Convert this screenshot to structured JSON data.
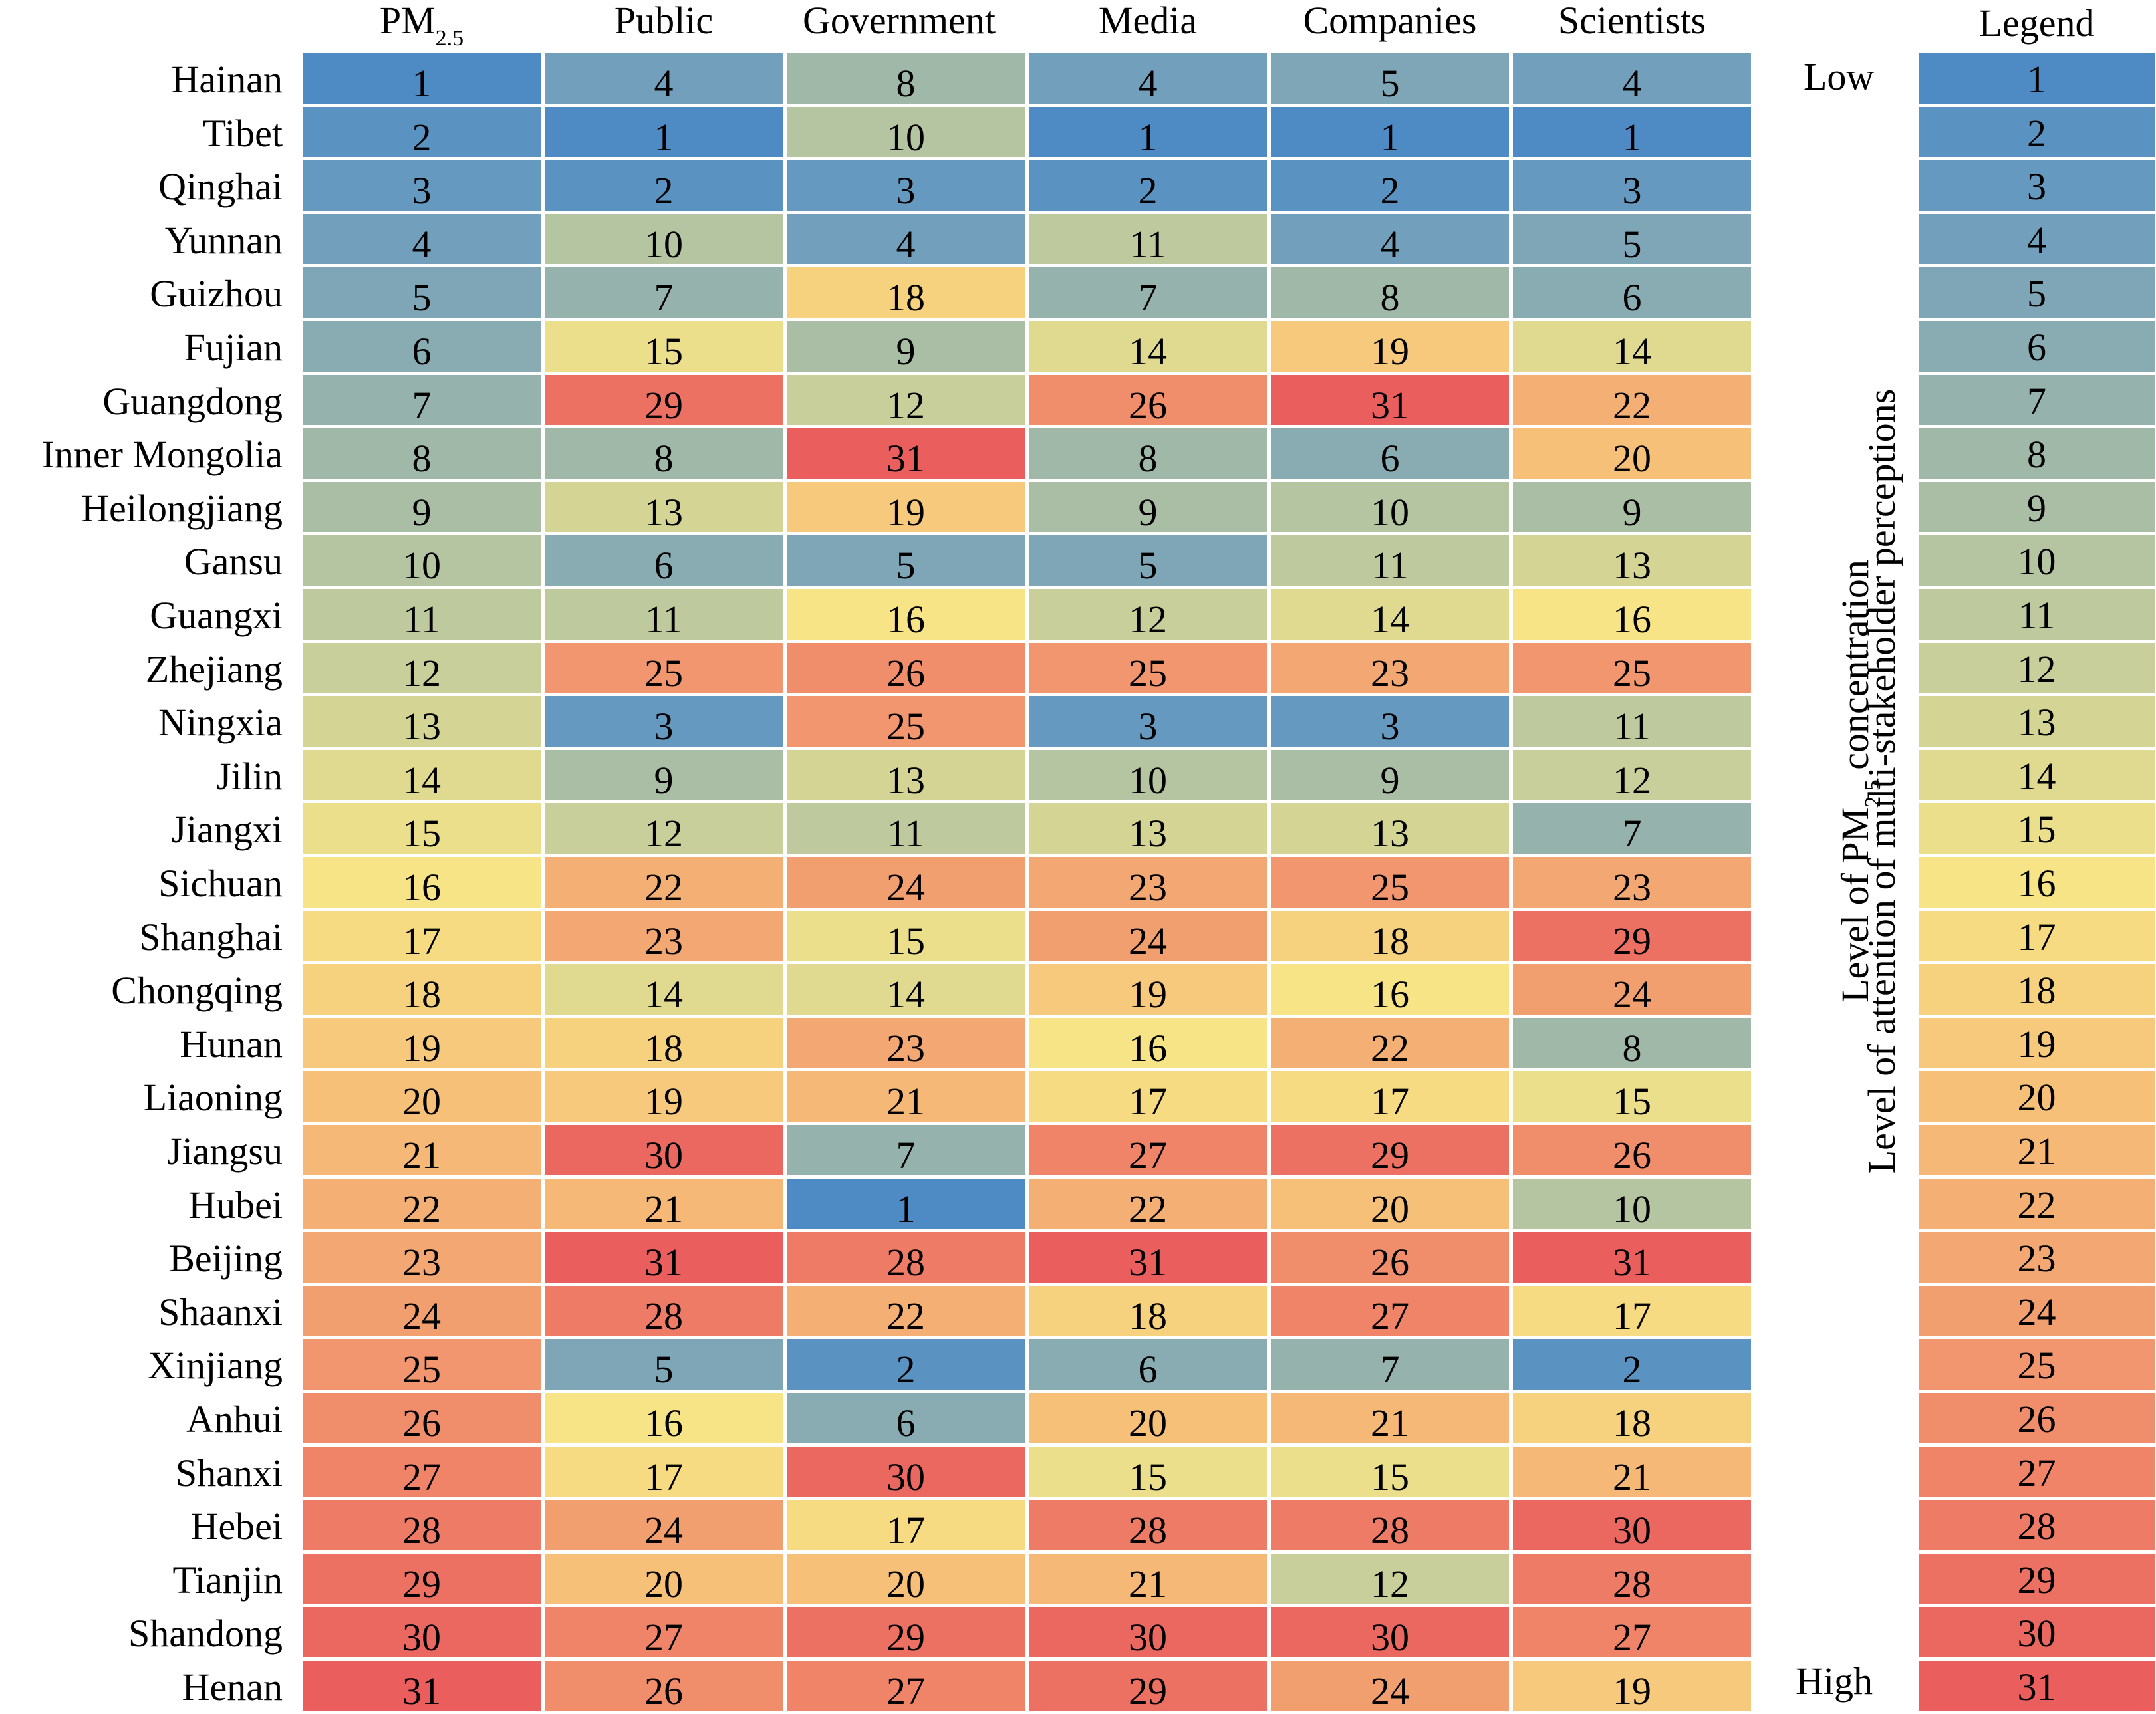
{
  "chart_data": {
    "type": "heatmap",
    "title": "",
    "columns": [
      "PM2.5",
      "Public",
      "Government",
      "Media",
      "Companies",
      "Scientists"
    ],
    "column_headers": [
      {
        "main": "PM",
        "sub": "2.5"
      },
      {
        "main": "Public",
        "sub": ""
      },
      {
        "main": "Government",
        "sub": ""
      },
      {
        "main": "Media",
        "sub": ""
      },
      {
        "main": "Companies",
        "sub": ""
      },
      {
        "main": "Scientists",
        "sub": ""
      }
    ],
    "rows": [
      "Hainan",
      "Tibet",
      "Qinghai",
      "Yunnan",
      "Guizhou",
      "Fujian",
      "Guangdong",
      "Inner Mongolia",
      "Heilongjiang",
      "Gansu",
      "Guangxi",
      "Zhejiang",
      "Ningxia",
      "Jilin",
      "Jiangxi",
      "Sichuan",
      "Shanghai",
      "Chongqing",
      "Hunan",
      "Liaoning",
      "Jiangsu",
      "Hubei",
      "Beijing",
      "Shaanxi",
      "Xinjiang",
      "Anhui",
      "Shanxi",
      "Hebei",
      "Tianjin",
      "Shandong",
      "Henan"
    ],
    "values": [
      [
        1,
        4,
        8,
        4,
        5,
        4
      ],
      [
        2,
        1,
        10,
        1,
        1,
        1
      ],
      [
        3,
        2,
        3,
        2,
        2,
        3
      ],
      [
        4,
        10,
        4,
        11,
        4,
        5
      ],
      [
        5,
        7,
        18,
        7,
        8,
        6
      ],
      [
        6,
        15,
        9,
        14,
        19,
        14
      ],
      [
        7,
        29,
        12,
        26,
        31,
        22
      ],
      [
        8,
        8,
        31,
        8,
        6,
        20
      ],
      [
        9,
        13,
        19,
        9,
        10,
        9
      ],
      [
        10,
        6,
        5,
        5,
        11,
        13
      ],
      [
        11,
        11,
        16,
        12,
        14,
        16
      ],
      [
        12,
        25,
        26,
        25,
        23,
        25
      ],
      [
        13,
        3,
        25,
        3,
        3,
        11
      ],
      [
        14,
        9,
        13,
        10,
        9,
        12
      ],
      [
        15,
        12,
        11,
        13,
        13,
        7
      ],
      [
        16,
        22,
        24,
        23,
        25,
        23
      ],
      [
        17,
        23,
        15,
        24,
        18,
        29
      ],
      [
        18,
        14,
        14,
        19,
        16,
        24
      ],
      [
        19,
        18,
        23,
        16,
        22,
        8
      ],
      [
        20,
        19,
        21,
        17,
        17,
        15
      ],
      [
        21,
        30,
        7,
        27,
        29,
        26
      ],
      [
        22,
        21,
        1,
        22,
        20,
        10
      ],
      [
        23,
        31,
        28,
        31,
        26,
        31
      ],
      [
        24,
        28,
        22,
        18,
        27,
        17
      ],
      [
        25,
        5,
        2,
        6,
        7,
        2
      ],
      [
        26,
        16,
        6,
        20,
        21,
        18
      ],
      [
        27,
        17,
        30,
        15,
        15,
        21
      ],
      [
        28,
        24,
        17,
        28,
        28,
        30
      ],
      [
        29,
        20,
        20,
        21,
        12,
        28
      ],
      [
        30,
        27,
        29,
        30,
        30,
        27
      ],
      [
        31,
        26,
        27,
        29,
        24,
        19
      ]
    ],
    "value_range": [
      1,
      31
    ],
    "color_scale": {
      "stops": [
        {
          "value": 1,
          "color": "#4e8bc4"
        },
        {
          "value": 4,
          "color": "#72a0bc"
        },
        {
          "value": 8,
          "color": "#a0b8a8"
        },
        {
          "value": 12,
          "color": "#c9cf9a"
        },
        {
          "value": 16,
          "color": "#f6e486"
        },
        {
          "value": 20,
          "color": "#f6c078"
        },
        {
          "value": 24,
          "color": "#f29f70"
        },
        {
          "value": 28,
          "color": "#ee7b66"
        },
        {
          "value": 31,
          "color": "#ea5e5e"
        }
      ]
    },
    "legend": {
      "title": "Legend",
      "low_label": "Low",
      "high_label": "High",
      "values": [
        1,
        2,
        3,
        4,
        5,
        6,
        7,
        8,
        9,
        10,
        11,
        12,
        13,
        14,
        15,
        16,
        17,
        18,
        19,
        20,
        21,
        22,
        23,
        24,
        25,
        26,
        27,
        28,
        29,
        30,
        31
      ]
    },
    "axis_titles": {
      "line1": {
        "pre": "Level of PM",
        "sub": "2.5",
        "post": " concentration"
      },
      "line2": "Level of attention of multi-stakeholder perceptions"
    }
  }
}
